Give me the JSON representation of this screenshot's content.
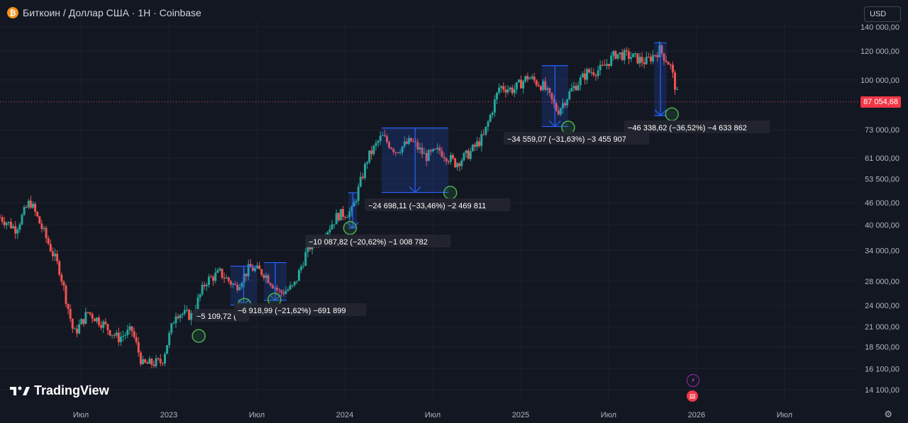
{
  "header": {
    "icon": "bitcoin-icon",
    "title": "Биткоин / Доллар США · 1H · Coinbase"
  },
  "currency_button": {
    "label": "USD"
  },
  "current_price": {
    "label": "87 054,68",
    "color": "#f23645"
  },
  "brand": {
    "label": "TradingView"
  },
  "colors": {
    "background": "#131722",
    "up": "#26a69a",
    "down": "#ef5350",
    "drawing": "#2962ff",
    "marker": "#4caf50"
  },
  "chart_data": {
    "type": "candlestick",
    "y_scale": "log",
    "ylim": [
      13000,
      145000
    ],
    "y_ticks": [
      {
        "value": 140000,
        "label": "140 000,00"
      },
      {
        "value": 120000,
        "label": "120 000,00"
      },
      {
        "value": 100000,
        "label": "100 000,00"
      },
      {
        "value": 73000,
        "label": "73 000,00"
      },
      {
        "value": 61000,
        "label": "61 000,00"
      },
      {
        "value": 53500,
        "label": "53 500,00"
      },
      {
        "value": 46000,
        "label": "46 000,00"
      },
      {
        "value": 40000,
        "label": "40 000,00"
      },
      {
        "value": 34000,
        "label": "34 000,00"
      },
      {
        "value": 28000,
        "label": "28 000,00"
      },
      {
        "value": 24000,
        "label": "24 000,00"
      },
      {
        "value": 21000,
        "label": "21 000,00"
      },
      {
        "value": 18500,
        "label": "18 500,00"
      },
      {
        "value": 16100,
        "label": "16 100,00"
      },
      {
        "value": 14100,
        "label": "14 100,00"
      }
    ],
    "x_ticks": [
      {
        "value": 2022.5,
        "label": "Июл"
      },
      {
        "value": 2023.0,
        "label": "2023"
      },
      {
        "value": 2023.5,
        "label": "Июл"
      },
      {
        "value": 2024.0,
        "label": "2024"
      },
      {
        "value": 2024.5,
        "label": "Июл"
      },
      {
        "value": 2025.0,
        "label": "2025"
      },
      {
        "value": 2025.5,
        "label": "Июл"
      },
      {
        "value": 2026.0,
        "label": "2026"
      },
      {
        "value": 2026.5,
        "label": "Июл"
      }
    ],
    "xlim": [
      2022.04,
      2026.92
    ],
    "last_price": 87054.68,
    "series_anchor_prices": [
      [
        2022.04,
        42000
      ],
      [
        2022.13,
        39000
      ],
      [
        2022.21,
        46500
      ],
      [
        2022.29,
        38000
      ],
      [
        2022.38,
        30000
      ],
      [
        2022.46,
        20000
      ],
      [
        2022.54,
        23000
      ],
      [
        2022.62,
        21500
      ],
      [
        2022.71,
        19500
      ],
      [
        2022.79,
        20500
      ],
      [
        2022.85,
        16500
      ],
      [
        2022.96,
        16800
      ],
      [
        2023.04,
        23000
      ],
      [
        2023.13,
        22500
      ],
      [
        2023.21,
        28000
      ],
      [
        2023.29,
        29500
      ],
      [
        2023.38,
        27000
      ],
      [
        2023.46,
        30500
      ],
      [
        2023.54,
        29500
      ],
      [
        2023.63,
        26000
      ],
      [
        2023.71,
        27000
      ],
      [
        2023.79,
        34500
      ],
      [
        2023.88,
        37500
      ],
      [
        2023.96,
        42500
      ],
      [
        2024.04,
        43500
      ],
      [
        2024.13,
        61000
      ],
      [
        2024.21,
        70000
      ],
      [
        2024.29,
        64000
      ],
      [
        2024.38,
        68000
      ],
      [
        2024.46,
        61500
      ],
      [
        2024.54,
        64000
      ],
      [
        2024.63,
        59000
      ],
      [
        2024.71,
        63000
      ],
      [
        2024.79,
        70000
      ],
      [
        2024.88,
        96000
      ],
      [
        2024.96,
        94000
      ],
      [
        2025.04,
        102000
      ],
      [
        2025.13,
        96000
      ],
      [
        2025.21,
        82000
      ],
      [
        2025.29,
        94000
      ],
      [
        2025.38,
        105000
      ],
      [
        2025.46,
        107000
      ],
      [
        2025.54,
        118000
      ],
      [
        2025.63,
        116000
      ],
      [
        2025.71,
        112000
      ],
      [
        2025.79,
        121000
      ],
      [
        2025.85,
        110000
      ],
      [
        2025.9,
        87054.68
      ]
    ],
    "drawdowns": [
      {
        "label": "−5 109,72 (",
        "from_x": 2023.17,
        "from_y": 23900,
        "to_x": 2023.17,
        "to_y": 20000
      },
      {
        "label": "−6 918,99 (−21,62%) −691 899",
        "from_x": 2023.38,
        "from_y": 30800,
        "to_x": 2023.44,
        "to_y": 24100
      },
      {
        "label": "−10 087,82 (−20,62%) −1 008 782",
        "from_x": 2024.02,
        "from_y": 48900,
        "to_x": 2024.03,
        "to_y": 39200
      },
      {
        "label": "−24 698,11 (−33,46%) −2 469 811",
        "from_x": 2024.2,
        "from_y": 73800,
        "to_x": 2024.6,
        "to_y": 49100
      },
      {
        "label": "−34 559,07 (−31,63%) −3 455 907",
        "from_x": 2025.1,
        "from_y": 109000,
        "to_x": 2025.26,
        "to_y": 74500
      },
      {
        "label": "−46 338,62 (−36,52%) −4 633 862",
        "from_x": 2025.8,
        "from_y": 126200,
        "to_x": 2025.87,
        "to_y": 80000
      }
    ],
    "boxes": [
      {
        "x0": 2023.35,
        "x1": 2023.5,
        "top": 30800,
        "bottom": 24100
      },
      {
        "x0": 2023.54,
        "x1": 2023.67,
        "top": 31500,
        "bottom": 24800
      },
      {
        "x0": 2024.02,
        "x1": 2024.07,
        "top": 49000,
        "bottom": 39200
      },
      {
        "x0": 2024.21,
        "x1": 2024.59,
        "top": 73800,
        "bottom": 49100
      },
      {
        "x0": 2025.12,
        "x1": 2025.27,
        "top": 109500,
        "bottom": 74500
      },
      {
        "x0": 2025.76,
        "x1": 2025.83,
        "top": 126500,
        "bottom": 79800
      }
    ],
    "markers": [
      {
        "x": 2023.17,
        "y": 19800
      },
      {
        "x": 2023.43,
        "y": 24100
      },
      {
        "x": 2023.6,
        "y": 24900
      },
      {
        "x": 2024.03,
        "y": 39200
      },
      {
        "x": 2024.6,
        "y": 49000
      },
      {
        "x": 2025.27,
        "y": 74000
      },
      {
        "x": 2025.86,
        "y": 80500
      }
    ]
  }
}
